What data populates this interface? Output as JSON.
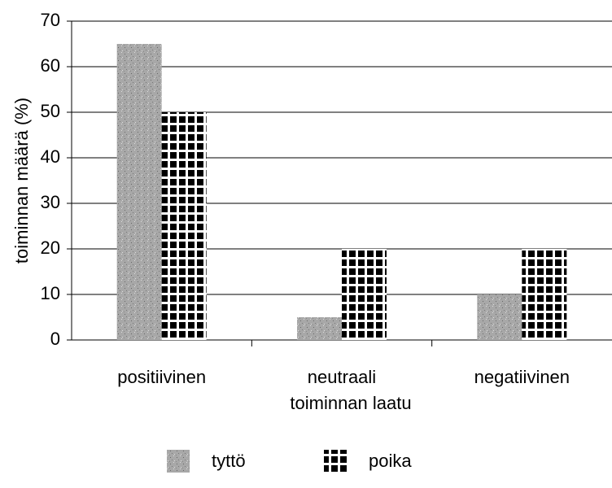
{
  "chart_data": {
    "type": "bar",
    "categories": [
      "positiivinen",
      "neutraali",
      "negatiivinen"
    ],
    "x_label": "toiminnan laatu",
    "y_label": "toiminnan määrä (%)",
    "series": [
      {
        "name": "tyttö",
        "color": "#a8a8a8",
        "values": [
          65,
          5,
          10
        ]
      },
      {
        "name": "poika",
        "color": "#000000",
        "values": [
          50,
          20,
          20
        ]
      }
    ],
    "ylim": [
      0,
      70
    ],
    "yticks": [
      0,
      10,
      20,
      30,
      40,
      50,
      60,
      70
    ],
    "grid": true,
    "legend": "bottom"
  }
}
